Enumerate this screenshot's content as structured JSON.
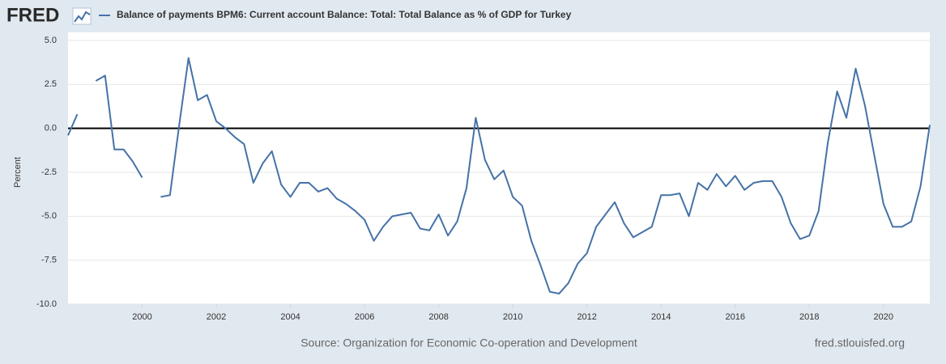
{
  "chart_data": {
    "type": "line",
    "logo": "FRED",
    "y_label": "Percent",
    "source": "Source: Organization for Economic Co-operation and Development",
    "site": "fred.stlouisfed.org",
    "x": [
      1998,
      1998.25,
      1998.5,
      1998.75,
      1999,
      1999.25,
      1999.5,
      1999.75,
      2000,
      2000.25,
      2000.5,
      2000.75,
      2001,
      2001.25,
      2001.5,
      2001.75,
      2002,
      2002.25,
      2002.5,
      2002.75,
      2003,
      2003.25,
      2003.5,
      2003.75,
      2004,
      2004.25,
      2004.5,
      2004.75,
      2005,
      2005.25,
      2005.5,
      2005.75,
      2006,
      2006.25,
      2006.5,
      2006.75,
      2007,
      2007.25,
      2007.5,
      2007.75,
      2008,
      2008.25,
      2008.5,
      2008.75,
      2009,
      2009.25,
      2009.5,
      2009.75,
      2010,
      2010.25,
      2010.5,
      2010.75,
      2011,
      2011.25,
      2011.5,
      2011.75,
      2012,
      2012.25,
      2012.5,
      2012.75,
      2013,
      2013.25,
      2013.5,
      2013.75,
      2014,
      2014.25,
      2014.5,
      2014.75,
      2015,
      2015.25,
      2015.5,
      2015.75,
      2016,
      2016.25,
      2016.5,
      2016.75,
      2017,
      2017.25,
      2017.5,
      2017.75,
      2018,
      2018.25,
      2018.5,
      2018.75,
      2019,
      2019.25,
      2019.5,
      2019.75,
      2020,
      2020.25,
      2020.5,
      2020.75,
      2021,
      2021.25
    ],
    "series": [
      {
        "name": "Balance of payments BPM6: Current account Balance: Total: Total Balance as % of GDP for Turkey",
        "color": "#4572a7",
        "values": [
          -0.4,
          0.8,
          null,
          2.7,
          3.0,
          -1.2,
          -1.2,
          -1.9,
          -2.8,
          null,
          -3.9,
          -3.8,
          0.2,
          4.0,
          1.6,
          1.9,
          0.4,
          0.0,
          -0.5,
          -0.9,
          -3.1,
          -2.0,
          -1.3,
          -3.2,
          -3.9,
          -3.1,
          -3.1,
          -3.6,
          -3.4,
          -4.0,
          -4.3,
          -4.7,
          -5.2,
          -6.4,
          -5.6,
          -5.0,
          -4.9,
          -4.8,
          -5.7,
          -5.8,
          -4.9,
          -6.1,
          -5.3,
          -3.4,
          0.6,
          -1.8,
          -2.9,
          -2.4,
          -3.9,
          -4.4,
          -6.4,
          -7.8,
          -9.3,
          -9.4,
          -8.8,
          -7.7,
          -7.1,
          -5.6,
          -4.9,
          -4.2,
          -5.4,
          -6.2,
          -5.9,
          -5.6,
          -3.8,
          -3.8,
          -3.7,
          -5.0,
          -3.1,
          -3.5,
          -2.6,
          -3.3,
          -2.7,
          -3.5,
          -3.1,
          -3.0,
          -3.0,
          -3.9,
          -5.4,
          -6.3,
          -6.1,
          -4.7,
          -0.8,
          2.1,
          0.6,
          3.4,
          1.3,
          -1.5,
          -4.3,
          -5.6,
          -5.6,
          -5.3,
          -3.3,
          0.2
        ]
      }
    ],
    "xlim": [
      1998,
      2021.25
    ],
    "xticks": [
      2000,
      2002,
      2004,
      2006,
      2008,
      2010,
      2012,
      2014,
      2016,
      2018,
      2020
    ],
    "ylim": [
      -10,
      5
    ],
    "yticks": [
      {
        "value": 5,
        "label": "5.0"
      },
      2.5,
      {
        "value": 0,
        "label": "0.0"
      },
      -2.5,
      {
        "value": -5,
        "label": "-5.0"
      },
      -7.5,
      {
        "value": -10,
        "label": "-10.0"
      }
    ],
    "grid": true
  }
}
